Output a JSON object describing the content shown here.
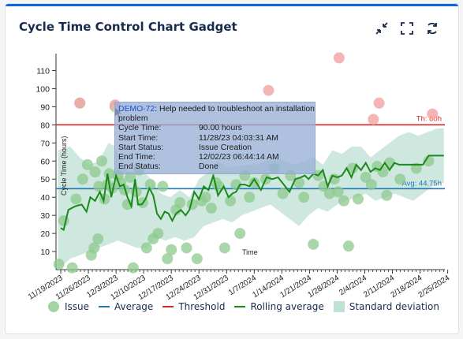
{
  "gadget": {
    "title": "Cycle Time Control Chart Gadget",
    "icons": [
      "collapse-icon",
      "fullscreen-icon",
      "refresh-icon"
    ]
  },
  "chart_data": {
    "type": "scatter",
    "ylabel": "Cycle Time (hours)",
    "xlabel": "Time",
    "ylim": [
      0,
      115
    ],
    "yticks": [
      10,
      20,
      30,
      40,
      50,
      60,
      70,
      80,
      90,
      100,
      110
    ],
    "x_tick_labels": [
      "11/19/2023",
      "11/26/2023",
      "12/3/2023",
      "12/10/2023",
      "12/17/2023",
      "12/24/2023",
      "12/31/2023",
      "1/7/2024",
      "1/14/2024",
      "1/21/2024",
      "1/28/2024",
      "2/4/2024",
      "2/11/2024",
      "2/18/2024",
      "2/25/2024"
    ],
    "threshold": {
      "value": 80,
      "label": "Th: 80h",
      "color": "#d62728"
    },
    "average": {
      "value": 44.75,
      "label": "Avg: 44.75h",
      "color": "#1f77b4"
    },
    "colors": {
      "issue": "#8cc98c",
      "outlier": "#f2a8a8",
      "rolling": "#1a8a1a",
      "stddev": "#bfe0d4"
    },
    "issues": [
      {
        "d": -0.2,
        "y": 3
      },
      {
        "d": 0.3,
        "y": 27
      },
      {
        "d": 1.2,
        "y": 1
      },
      {
        "d": 1.6,
        "y": 39
      },
      {
        "d": 2.0,
        "y": 92
      },
      {
        "d": 2.3,
        "y": 50
      },
      {
        "d": 2.8,
        "y": 58
      },
      {
        "d": 3.2,
        "y": 8
      },
      {
        "d": 3.5,
        "y": 12
      },
      {
        "d": 3.6,
        "y": 54
      },
      {
        "d": 3.9,
        "y": 17
      },
      {
        "d": 4.0,
        "y": 46
      },
      {
        "d": 4.3,
        "y": 60
      },
      {
        "d": 4.6,
        "y": 39
      },
      {
        "d": 4.9,
        "y": 47
      },
      {
        "d": 5.1,
        "y": 53
      },
      {
        "d": 5.4,
        "y": 45
      },
      {
        "d": 5.7,
        "y": 90
      },
      {
        "d": 6.0,
        "y": 52
      },
      {
        "d": 6.3,
        "y": 48
      },
      {
        "d": 6.7,
        "y": 44
      },
      {
        "d": 7.0,
        "y": 36
      },
      {
        "d": 7.3,
        "y": 51
      },
      {
        "d": 7.6,
        "y": 1
      },
      {
        "d": 7.9,
        "y": 43
      },
      {
        "d": 8.2,
        "y": 55
      },
      {
        "d": 8.6,
        "y": 37
      },
      {
        "d": 9.0,
        "y": 12
      },
      {
        "d": 9.4,
        "y": 47
      },
      {
        "d": 9.7,
        "y": 17
      },
      {
        "d": 10.2,
        "y": 20
      },
      {
        "d": 10.7,
        "y": 46
      },
      {
        "d": 11.2,
        "y": 6
      },
      {
        "d": 11.6,
        "y": 11
      },
      {
        "d": 12.1,
        "y": 33
      },
      {
        "d": 12.5,
        "y": 37
      },
      {
        "d": 13.2,
        "y": 12
      },
      {
        "d": 13.8,
        "y": 36
      },
      {
        "d": 14.3,
        "y": 6
      },
      {
        "d": 14.8,
        "y": 38
      },
      {
        "d": 15.2,
        "y": 40
      },
      {
        "d": 15.8,
        "y": 34
      },
      {
        "d": 16.3,
        "y": 48
      },
      {
        "d": 16.6,
        "y": 46
      },
      {
        "d": 17.2,
        "y": 12
      },
      {
        "d": 17.8,
        "y": 38
      },
      {
        "d": 18.4,
        "y": 47
      },
      {
        "d": 18.8,
        "y": 20
      },
      {
        "d": 19.3,
        "y": 52
      },
      {
        "d": 19.8,
        "y": 40
      },
      {
        "d": 20.3,
        "y": 48
      },
      {
        "d": 21.5,
        "y": 50
      },
      {
        "d": 22.4,
        "y": 56
      },
      {
        "d": 23.3,
        "y": 42
      },
      {
        "d": 24.1,
        "y": 52
      },
      {
        "d": 25.0,
        "y": 48
      },
      {
        "d": 25.5,
        "y": 40
      },
      {
        "d": 26.5,
        "y": 14
      },
      {
        "d": 27.0,
        "y": 52
      },
      {
        "d": 27.6,
        "y": 46
      },
      {
        "d": 28.2,
        "y": 42
      },
      {
        "d": 28.7,
        "y": 50
      },
      {
        "d": 29.1,
        "y": 43
      },
      {
        "d": 29.7,
        "y": 38
      },
      {
        "d": 30.2,
        "y": 13
      },
      {
        "d": 30.6,
        "y": 56
      },
      {
        "d": 31.2,
        "y": 39
      },
      {
        "d": 32.0,
        "y": 51
      },
      {
        "d": 32.6,
        "y": 47
      },
      {
        "d": 33.2,
        "y": 57
      },
      {
        "d": 33.8,
        "y": 54
      },
      {
        "d": 34.2,
        "y": 41
      },
      {
        "d": 34.5,
        "y": 59
      },
      {
        "d": 35.6,
        "y": 50
      },
      {
        "d": 37.3,
        "y": 56
      },
      {
        "d": 38.6,
        "y": 60
      }
    ],
    "outliers": [
      {
        "d": 2.0,
        "y": 92
      },
      {
        "d": 5.7,
        "y": 91
      },
      {
        "d": 21.8,
        "y": 99
      },
      {
        "d": 29.2,
        "y": 117
      },
      {
        "d": 32.8,
        "y": 83
      },
      {
        "d": 33.4,
        "y": 92
      },
      {
        "d": 39.0,
        "y": 86
      }
    ],
    "rolling": [
      [
        0,
        23
      ],
      [
        0.3,
        22
      ],
      [
        0.8,
        33
      ],
      [
        1.5,
        35
      ],
      [
        2.2,
        36
      ],
      [
        2.7,
        32
      ],
      [
        3.1,
        40
      ],
      [
        3.6,
        38
      ],
      [
        4.1,
        43
      ],
      [
        4.5,
        38
      ],
      [
        4.9,
        53
      ],
      [
        5.3,
        40
      ],
      [
        5.8,
        52
      ],
      [
        6.2,
        46
      ],
      [
        6.6,
        47
      ],
      [
        7.0,
        40
      ],
      [
        7.4,
        35
      ],
      [
        7.8,
        50
      ],
      [
        8.1,
        36
      ],
      [
        8.5,
        36
      ],
      [
        8.9,
        39
      ],
      [
        9.3,
        45
      ],
      [
        9.7,
        41
      ],
      [
        10.1,
        31
      ],
      [
        10.5,
        28
      ],
      [
        10.9,
        32
      ],
      [
        11.3,
        31
      ],
      [
        11.7,
        27
      ],
      [
        12.1,
        31
      ],
      [
        12.6,
        33
      ],
      [
        13.1,
        30
      ],
      [
        13.5,
        33
      ],
      [
        14.0,
        43
      ],
      [
        14.5,
        39
      ],
      [
        15.0,
        46
      ],
      [
        15.5,
        44
      ],
      [
        16.0,
        52
      ],
      [
        16.5,
        41
      ],
      [
        17.1,
        46
      ],
      [
        17.6,
        40
      ],
      [
        18.0,
        42
      ],
      [
        18.4,
        43
      ],
      [
        18.8,
        47
      ],
      [
        19.3,
        47
      ],
      [
        19.8,
        46
      ],
      [
        20.3,
        50
      ],
      [
        21.0,
        44
      ],
      [
        21.6,
        51
      ],
      [
        22.2,
        50
      ],
      [
        22.8,
        51
      ],
      [
        23.4,
        47
      ],
      [
        24.0,
        43
      ],
      [
        24.6,
        50
      ],
      [
        25.2,
        51
      ],
      [
        25.6,
        52
      ],
      [
        26.0,
        50
      ],
      [
        26.5,
        53
      ],
      [
        27.0,
        52
      ],
      [
        27.5,
        55
      ],
      [
        28.0,
        46
      ],
      [
        28.5,
        52
      ],
      [
        29.0,
        51
      ],
      [
        29.5,
        52
      ],
      [
        30.0,
        56
      ],
      [
        30.5,
        51
      ],
      [
        31.0,
        58
      ],
      [
        31.5,
        55
      ],
      [
        32.0,
        59
      ],
      [
        32.5,
        54
      ],
      [
        33.0,
        56
      ],
      [
        33.5,
        55
      ],
      [
        34.0,
        59
      ],
      [
        34.5,
        55
      ],
      [
        35.0,
        59
      ],
      [
        35.5,
        58
      ],
      [
        36.0,
        58
      ],
      [
        37.0,
        58
      ],
      [
        38.0,
        58
      ],
      [
        38.6,
        63
      ],
      [
        39.3,
        63
      ],
      [
        40.2,
        63
      ]
    ],
    "std_upper": [
      [
        -0.3,
        66
      ],
      [
        1,
        68
      ],
      [
        2,
        62
      ],
      [
        3,
        58
      ],
      [
        4,
        60
      ],
      [
        5,
        70
      ],
      [
        5.7,
        68
      ],
      [
        6.5,
        58
      ],
      [
        7.5,
        52
      ],
      [
        8.5,
        55
      ],
      [
        9.5,
        50
      ],
      [
        10.5,
        42
      ],
      [
        11.5,
        40
      ],
      [
        12.5,
        44
      ],
      [
        13.5,
        40
      ],
      [
        14.5,
        50
      ],
      [
        15.5,
        54
      ],
      [
        16.5,
        60
      ],
      [
        17.5,
        56
      ],
      [
        18.5,
        57
      ],
      [
        19.5,
        58
      ],
      [
        20.5,
        58
      ],
      [
        21.5,
        60
      ],
      [
        22.5,
        62
      ],
      [
        23.5,
        60
      ],
      [
        24.5,
        58
      ],
      [
        25.5,
        60
      ],
      [
        26.5,
        62
      ],
      [
        27.5,
        58
      ],
      [
        28.5,
        66
      ],
      [
        29.5,
        64
      ],
      [
        30.5,
        68
      ],
      [
        31.5,
        68
      ],
      [
        32.5,
        62
      ],
      [
        33.5,
        66
      ],
      [
        34.5,
        70
      ],
      [
        35.5,
        74
      ],
      [
        36.5,
        76
      ],
      [
        37.5,
        74
      ],
      [
        38.5,
        76
      ],
      [
        39.5,
        78
      ],
      [
        40.2,
        78
      ]
    ],
    "std_lower": [
      [
        -0.3,
        0
      ],
      [
        1,
        6
      ],
      [
        2,
        8
      ],
      [
        3,
        10
      ],
      [
        4,
        12
      ],
      [
        5,
        14
      ],
      [
        6,
        16
      ],
      [
        7,
        14
      ],
      [
        8,
        12
      ],
      [
        9,
        12
      ],
      [
        10,
        18
      ],
      [
        11,
        16
      ],
      [
        12,
        18
      ],
      [
        13,
        16
      ],
      [
        14,
        18
      ],
      [
        15,
        24
      ],
      [
        16,
        26
      ],
      [
        17,
        28
      ],
      [
        18,
        26
      ],
      [
        19,
        30
      ],
      [
        20,
        32
      ],
      [
        21,
        34
      ],
      [
        22,
        36
      ],
      [
        23,
        32
      ],
      [
        24,
        28
      ],
      [
        25,
        24
      ],
      [
        26,
        30
      ],
      [
        27,
        34
      ],
      [
        28,
        32
      ],
      [
        29,
        36
      ],
      [
        30,
        38
      ],
      [
        31,
        40
      ],
      [
        32,
        42
      ],
      [
        33,
        38
      ],
      [
        34,
        40
      ],
      [
        35,
        42
      ],
      [
        36,
        40
      ],
      [
        37,
        38
      ],
      [
        38,
        42
      ],
      [
        39,
        46
      ],
      [
        40.2,
        48
      ]
    ],
    "legend": [
      "Issue",
      "Average",
      "Threshold",
      "Rolling average",
      "Standard deviation"
    ],
    "tooltip": {
      "issue_key": "DEMO-72",
      "issue_summary": ": Help needed to troubleshoot an installation problem",
      "rows": [
        {
          "k": "Cycle Time:",
          "v": "90.00 hours"
        },
        {
          "k": "Start Time:",
          "v": "11/28/23 04:03:31 AM"
        },
        {
          "k": "Start Status:",
          "v": "Issue Creation"
        },
        {
          "k": "End Time:",
          "v": "12/02/23 06:44:14 AM"
        },
        {
          "k": "End Status:",
          "v": "Done"
        }
      ]
    }
  }
}
